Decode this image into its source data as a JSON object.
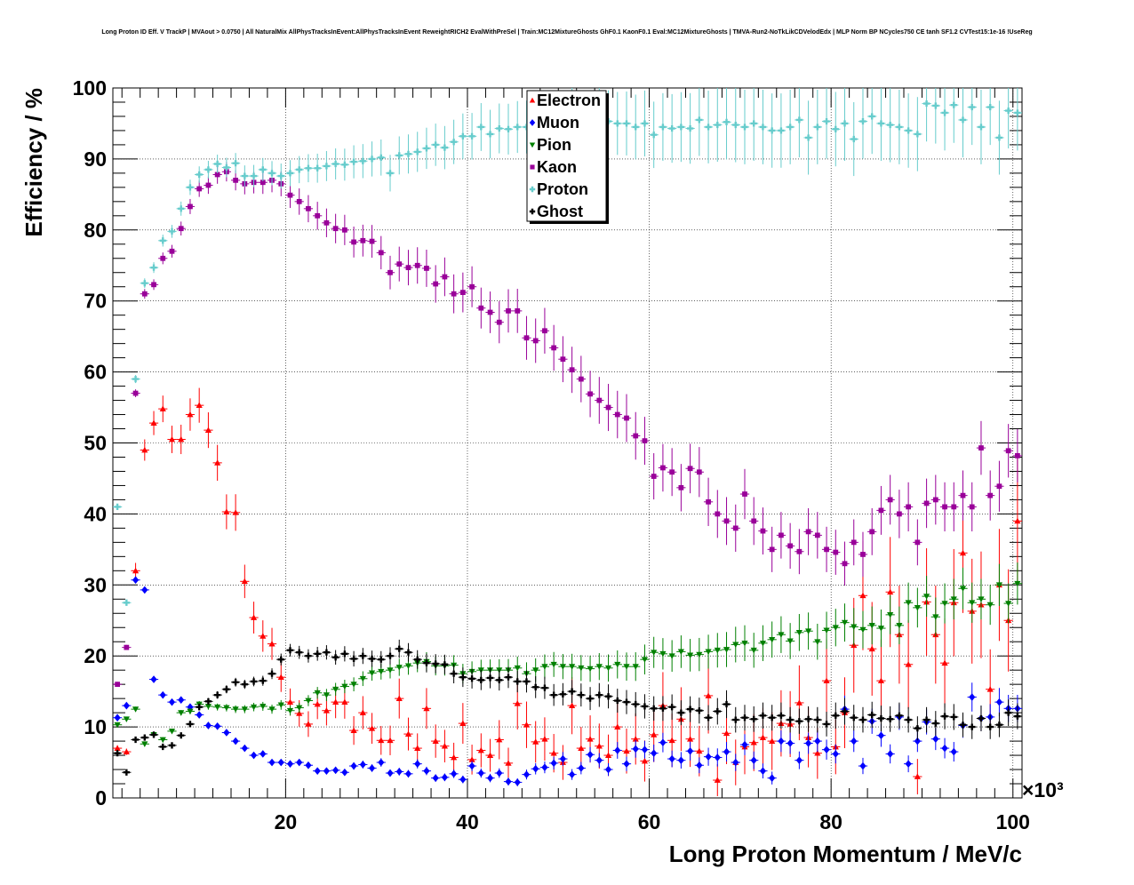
{
  "title": "Long Proton ID Eff. V TrackP | MVAout > 0.0750 | All NaturalMix AllPhysTracksInEvent:AllPhysTracksInEvent ReweightRICH2 EvalWithPreSel | Train:MC12MixtureGhosts GhF0.1 KaonF0.1 Eval:MC12MixtureGhosts | TMVA-Run2-NoTkLikCDVelodEdx | MLP Norm BP NCycles750 CE tanh SF1.2 CVTest15:1e-16 !UseReg",
  "chart_data": {
    "type": "scatter",
    "title": "Long Proton ID Eff. V TrackP | MVAout > 0.0750 | All NaturalMix AllPhysTracksInEvent:AllPhysTracksInEvent ReweightRICH2 EvalWithPreSel | Train:MC12MixtureGhosts GhF0.1 KaonF0.1 Eval:MC12MixtureGhosts | TMVA-Run2-NoTkLikCDVelodEdx | MLP Norm BP NCycles750 CE tanh SF1.2 CVTest15:1e-16 !UseReg",
    "xlabel": "Long Proton Momentum / MeV/c",
    "ylabel": "Efficiency / %",
    "x_multiplier": "×10³",
    "xlim": [
      1,
      101
    ],
    "ylim": [
      0,
      100
    ],
    "x_ticks": [
      20,
      40,
      60,
      80,
      100
    ],
    "y_ticks": [
      0,
      10,
      20,
      30,
      40,
      50,
      60,
      70,
      80,
      90,
      100
    ],
    "grid": true,
    "legend_position": "top-center",
    "x": [
      1.5,
      2.5,
      3.5,
      4.5,
      5.5,
      6.5,
      7.5,
      8.5,
      9.5,
      10.5,
      11.5,
      12.5,
      13.5,
      14.5,
      15.5,
      16.5,
      17.5,
      18.5,
      19.5,
      20.5,
      21.5,
      22.5,
      23.5,
      24.5,
      25.5,
      26.5,
      27.5,
      28.5,
      29.5,
      30.5,
      31.5,
      32.5,
      33.5,
      34.5,
      35.5,
      36.5,
      37.5,
      38.5,
      39.5,
      40.5,
      41.5,
      42.5,
      43.5,
      44.5,
      45.5,
      46.5,
      47.5,
      48.5,
      49.5,
      50.5,
      51.5,
      52.5,
      53.5,
      54.5,
      55.5,
      56.5,
      57.5,
      58.5,
      59.5,
      60.5,
      61.5,
      62.5,
      63.5,
      64.5,
      65.5,
      66.5,
      67.5,
      68.5,
      69.5,
      70.5,
      71.5,
      72.5,
      73.5,
      74.5,
      75.5,
      76.5,
      77.5,
      78.5,
      79.5,
      80.5,
      81.5,
      82.5,
      83.5,
      84.5,
      85.5,
      86.5,
      87.5,
      88.5,
      89.5,
      90.5,
      91.5,
      92.5,
      93.5,
      94.5,
      95.5,
      96.5,
      97.5,
      98.5,
      99.5,
      100.5
    ],
    "series": [
      {
        "name": "Electron",
        "color": "#ff0000",
        "marker": "triangle-up",
        "values": [
          7.0,
          6.5,
          32.0,
          49.0,
          52.8,
          54.8,
          50.5,
          50.5,
          54.0,
          55.3,
          51.8,
          47.2,
          40.3,
          40.2,
          30.5,
          25.4,
          22.8,
          21.7,
          17.0,
          13.5,
          11.9,
          10.4,
          13.2,
          12.3,
          13.5,
          13.5,
          9.5,
          12.0,
          9.8,
          8.1,
          8.1,
          14.0,
          9.0,
          7.0,
          12.6,
          8.0,
          7.3,
          5.7,
          10.5,
          5.4,
          6.7,
          6.0,
          8.2,
          4.9,
          13.3,
          10.3,
          7.9,
          8.3,
          6.3,
          5.0,
          13.0,
          7.0,
          8.3,
          7.3,
          6.0,
          10.0,
          6.6,
          8.3,
          5.2,
          8.9,
          13.0,
          8.1,
          11.1,
          8.3,
          6.6,
          14.4,
          2.5,
          9.1,
          5.0,
          7.2,
          7.8,
          8.5,
          8.0,
          10.5,
          10.4,
          13.4,
          8.5,
          6.3,
          16.5,
          7.2,
          12.0,
          21.5,
          28.5,
          21.0,
          16.5,
          29.0,
          23.0,
          18.8,
          3.0,
          27.6,
          23.0,
          19.0,
          27.5,
          34.5,
          26.3,
          27.2,
          15.3,
          30.0,
          25.0,
          39.0
        ]
      },
      {
        "name": "Muon",
        "color": "#0000ff",
        "marker": "diamond",
        "values": [
          11.3,
          13.0,
          30.7,
          29.3,
          16.7,
          14.5,
          13.5,
          13.8,
          12.8,
          11.7,
          10.2,
          10.1,
          9.2,
          8.0,
          7.0,
          6.0,
          6.2,
          5.0,
          5.0,
          4.8,
          5.0,
          4.6,
          3.8,
          3.8,
          3.9,
          3.6,
          4.5,
          4.7,
          4.2,
          5.0,
          3.5,
          3.7,
          3.4,
          4.8,
          3.8,
          2.8,
          2.9,
          3.4,
          2.6,
          4.5,
          3.5,
          2.8,
          3.5,
          2.3,
          2.2,
          3.3,
          4.1,
          4.3,
          4.9,
          5.5,
          3.3,
          4.2,
          6.1,
          5.3,
          4.0,
          6.7,
          4.8,
          6.9,
          6.8,
          6.3,
          7.8,
          5.5,
          5.3,
          6.6,
          4.6,
          5.8,
          5.7,
          6.5,
          5.0,
          7.5,
          5.3,
          3.8,
          2.8,
          8.0,
          7.7,
          5.3,
          7.7,
          8.0,
          6.8,
          6.2,
          12.5,
          8.0,
          4.5,
          10.8,
          8.8,
          6.2,
          11.4,
          4.8,
          8.0,
          10.7,
          8.3,
          7.0,
          6.5,
          10.2,
          14.2,
          11.2,
          11.4,
          13.5,
          12.6,
          12.6
        ]
      },
      {
        "name": "Pion",
        "color": "#008000",
        "marker": "triangle-down",
        "values": [
          10.3,
          11.1,
          12.5,
          7.6,
          8.9,
          8.2,
          9.4,
          12.0,
          12.2,
          13.2,
          12.9,
          12.8,
          12.7,
          12.5,
          12.5,
          12.8,
          12.9,
          12.5,
          13.1,
          12.3,
          12.7,
          13.7,
          14.8,
          14.5,
          15.3,
          15.7,
          16.0,
          16.8,
          17.6,
          17.8,
          18.0,
          18.4,
          18.6,
          19.0,
          19.2,
          18.6,
          18.6,
          18.7,
          17.5,
          17.8,
          18.0,
          18.0,
          18.0,
          18.0,
          18.3,
          17.5,
          18.0,
          18.5,
          18.8,
          18.5,
          18.5,
          18.3,
          18.2,
          18.5,
          18.3,
          18.8,
          18.5,
          18.5,
          19.5,
          20.5,
          20.3,
          20.0,
          20.6,
          20.1,
          20.2,
          20.6,
          20.8,
          20.9,
          21.6,
          21.8,
          20.8,
          21.8,
          22.3,
          23.0,
          22.1,
          23.3,
          23.5,
          22.0,
          23.6,
          24.0,
          24.7,
          24.1,
          23.7,
          24.3,
          23.9,
          25.8,
          24.3,
          27.5,
          26.8,
          28.4,
          25.5,
          27.4,
          28.0,
          29.5,
          27.5,
          28.0,
          27.2,
          30.0,
          27.4,
          30.2
        ]
      },
      {
        "name": "Kaon",
        "color": "#990099",
        "marker": "square",
        "values": [
          16.0,
          21.2,
          57.0,
          71.0,
          72.3,
          76.0,
          77.0,
          80.2,
          83.3,
          85.8,
          86.3,
          87.8,
          88.2,
          87.0,
          86.5,
          86.7,
          86.7,
          87.0,
          86.5,
          84.9,
          84.0,
          83.0,
          82.0,
          81.0,
          80.2,
          80.0,
          78.3,
          78.5,
          78.4,
          76.8,
          74.0,
          75.2,
          74.7,
          75.0,
          74.6,
          72.4,
          73.4,
          71.0,
          71.2,
          72.0,
          69.0,
          68.4,
          67.0,
          68.6,
          68.6,
          64.8,
          64.4,
          65.8,
          63.4,
          61.8,
          60.3,
          59.0,
          56.9,
          56.0,
          55.0,
          54.0,
          53.5,
          51.0,
          50.3,
          45.3,
          46.5,
          45.9,
          43.7,
          46.4,
          45.9,
          41.7,
          40.0,
          39.0,
          38.0,
          42.8,
          39.0,
          37.6,
          35.0,
          37.0,
          35.5,
          34.7,
          37.5,
          37.0,
          35.0,
          34.6,
          33.0,
          36.0,
          34.3,
          37.5,
          40.5,
          42.0,
          40.0,
          41.0,
          36.0,
          41.5,
          42.0,
          41.0,
          41.0,
          42.6,
          41.0,
          49.3,
          42.6,
          43.9,
          48.9,
          48.2
        ]
      },
      {
        "name": "Proton",
        "color": "#66cccc",
        "marker": "cross",
        "values": [
          41.0,
          27.5,
          59.0,
          72.5,
          74.7,
          78.5,
          79.8,
          83.0,
          86.0,
          87.8,
          88.5,
          89.3,
          88.8,
          89.4,
          87.6,
          87.6,
          88.5,
          88.0,
          87.6,
          88.0,
          88.5,
          88.7,
          88.7,
          89.0,
          89.3,
          89.2,
          89.6,
          89.7,
          90.0,
          90.2,
          88.0,
          90.5,
          90.7,
          91.0,
          91.5,
          92.0,
          91.6,
          92.4,
          93.2,
          93.2,
          94.5,
          93.5,
          94.3,
          94.2,
          94.5,
          94.5,
          95.3,
          95.8,
          94.0,
          94.2,
          96.5,
          94.3,
          94.8,
          95.8,
          95.3,
          95.0,
          95.0,
          94.5,
          95.0,
          93.4,
          94.5,
          94.3,
          94.5,
          94.3,
          95.5,
          94.5,
          94.8,
          95.2,
          94.8,
          94.5,
          95.0,
          94.5,
          94.0,
          94.0,
          94.5,
          95.5,
          93.0,
          94.5,
          95.3,
          94.2,
          95.0,
          92.8,
          95.3,
          96.0,
          95.0,
          94.8,
          94.5,
          94.0,
          93.5,
          97.8,
          97.5,
          96.5,
          97.6,
          95.5,
          97.3,
          94.5,
          97.3,
          93.0,
          96.8,
          96.5
        ]
      },
      {
        "name": "Ghost",
        "color": "#000000",
        "marker": "cross",
        "values": [
          6.3,
          3.6,
          8.2,
          8.5,
          8.9,
          7.2,
          7.4,
          8.8,
          10.4,
          12.8,
          13.6,
          14.5,
          15.3,
          16.3,
          16.0,
          16.4,
          16.5,
          17.5,
          19.5,
          20.8,
          20.5,
          20.0,
          20.3,
          20.5,
          19.8,
          20.3,
          19.6,
          20.0,
          19.6,
          19.5,
          20.0,
          21.0,
          20.5,
          19.5,
          19.0,
          18.9,
          18.8,
          17.5,
          17.0,
          16.8,
          16.6,
          16.9,
          16.6,
          17.0,
          16.4,
          16.4,
          15.6,
          15.5,
          14.5,
          14.6,
          15.0,
          14.5,
          14.0,
          14.5,
          14.3,
          13.7,
          13.5,
          13.2,
          12.9,
          12.6,
          12.6,
          12.8,
          12.0,
          12.5,
          12.3,
          11.3,
          12.2,
          13.2,
          11.0,
          11.3,
          11.1,
          11.6,
          11.3,
          11.6,
          11.0,
          10.8,
          11.1,
          11.0,
          10.4,
          11.6,
          12.2,
          11.3,
          11.0,
          11.7,
          11.2,
          11.1,
          11.6,
          11.0,
          9.8,
          11.0,
          10.5,
          11.5,
          11.4,
          10.3,
          10.0,
          11.2,
          10.0,
          10.3,
          12.0,
          11.5
        ]
      }
    ]
  }
}
